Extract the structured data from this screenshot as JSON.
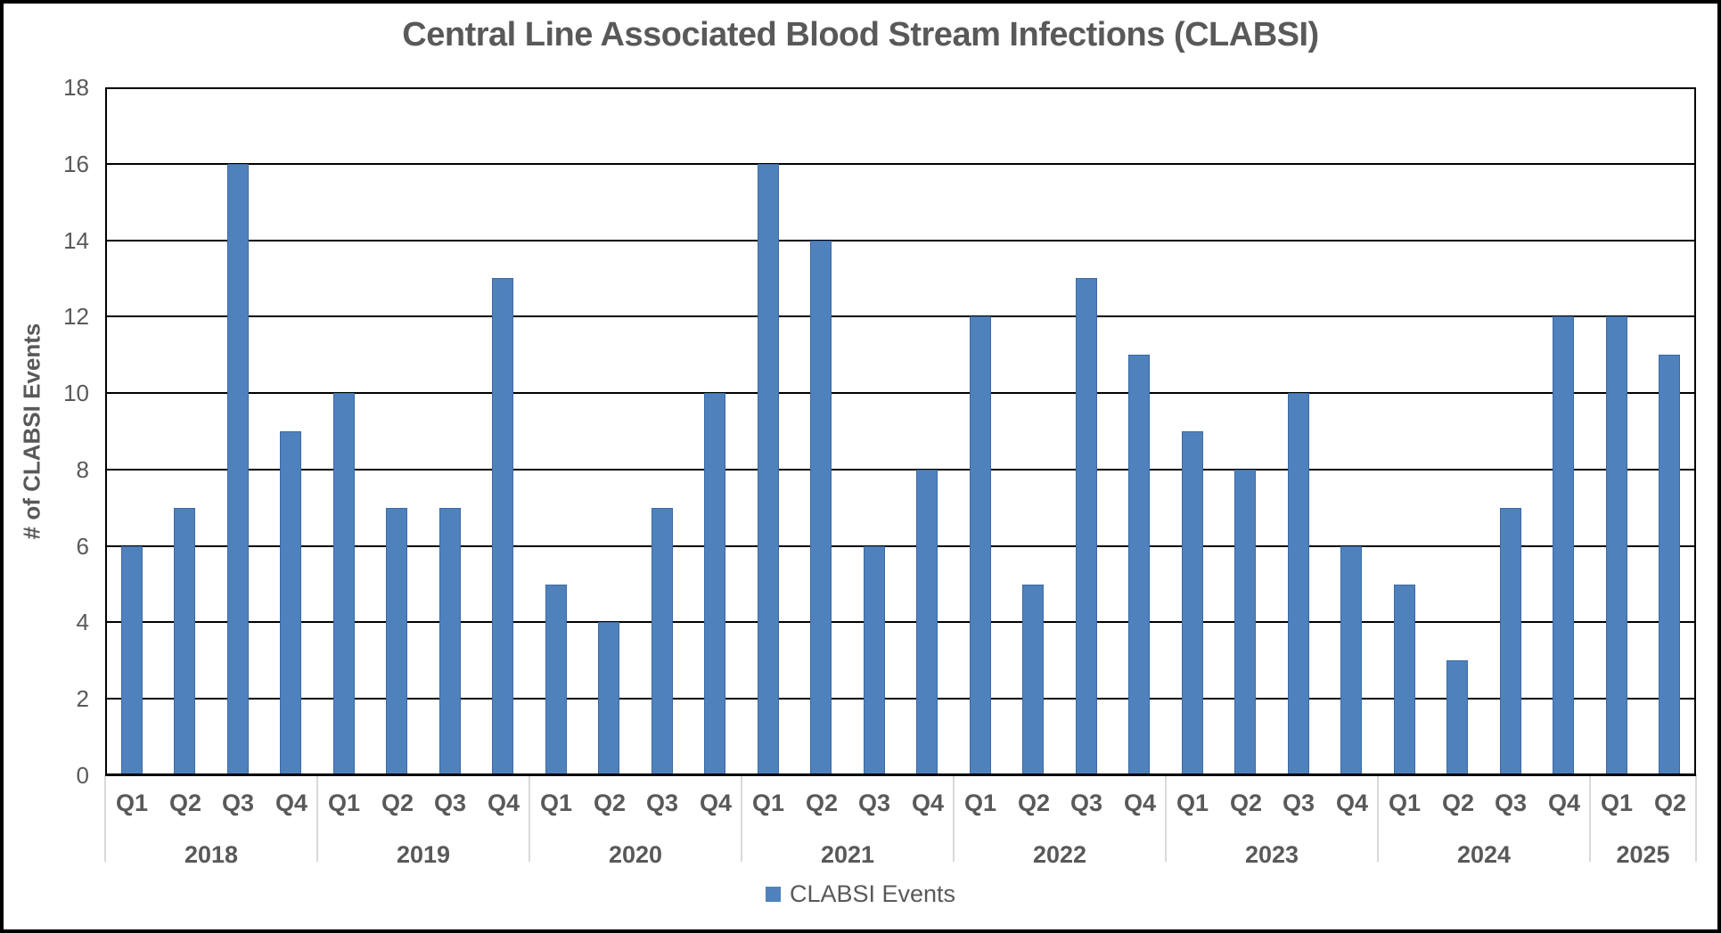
{
  "chart_data": {
    "type": "bar",
    "title": "Central Line Associated Blood Stream Infections (CLABSI)",
    "ylabel": "# of CLABSI Events",
    "legend_label": "CLABSI Events",
    "legend_position": "bottom",
    "grid": true,
    "ylim": [
      0,
      18
    ],
    "ytick_step": 2,
    "ytick_labels": [
      "0",
      "2",
      "4",
      "6",
      "8",
      "10",
      "12",
      "14",
      "16",
      "18"
    ],
    "groups": [
      {
        "year": "2018",
        "quarters": [
          "Q1",
          "Q2",
          "Q3",
          "Q4"
        ],
        "values": [
          6,
          7,
          16,
          9
        ]
      },
      {
        "year": "2019",
        "quarters": [
          "Q1",
          "Q2",
          "Q3",
          "Q4"
        ],
        "values": [
          10,
          7,
          7,
          13
        ]
      },
      {
        "year": "2020",
        "quarters": [
          "Q1",
          "Q2",
          "Q3",
          "Q4"
        ],
        "values": [
          5,
          4,
          7,
          10
        ]
      },
      {
        "year": "2021",
        "quarters": [
          "Q1",
          "Q2",
          "Q3",
          "Q4"
        ],
        "values": [
          16,
          14,
          6,
          8
        ]
      },
      {
        "year": "2022",
        "quarters": [
          "Q1",
          "Q2",
          "Q3",
          "Q4"
        ],
        "values": [
          12,
          5,
          13,
          11
        ]
      },
      {
        "year": "2023",
        "quarters": [
          "Q1",
          "Q2",
          "Q3",
          "Q4"
        ],
        "values": [
          9,
          8,
          10,
          6
        ]
      },
      {
        "year": "2024",
        "quarters": [
          "Q1",
          "Q2",
          "Q3",
          "Q4"
        ],
        "values": [
          5,
          3,
          7,
          12
        ]
      },
      {
        "year": "2025",
        "quarters": [
          "Q1",
          "Q2"
        ],
        "values": [
          12,
          11
        ]
      }
    ]
  },
  "colors": {
    "bar_fill": "#4F81BD",
    "bar_border": "#3A6AA5",
    "text": "#595959",
    "gridline": "#000000",
    "year_separator": "#D9D9D9",
    "background": "#FFFFFF",
    "frame_border": "#000000"
  }
}
